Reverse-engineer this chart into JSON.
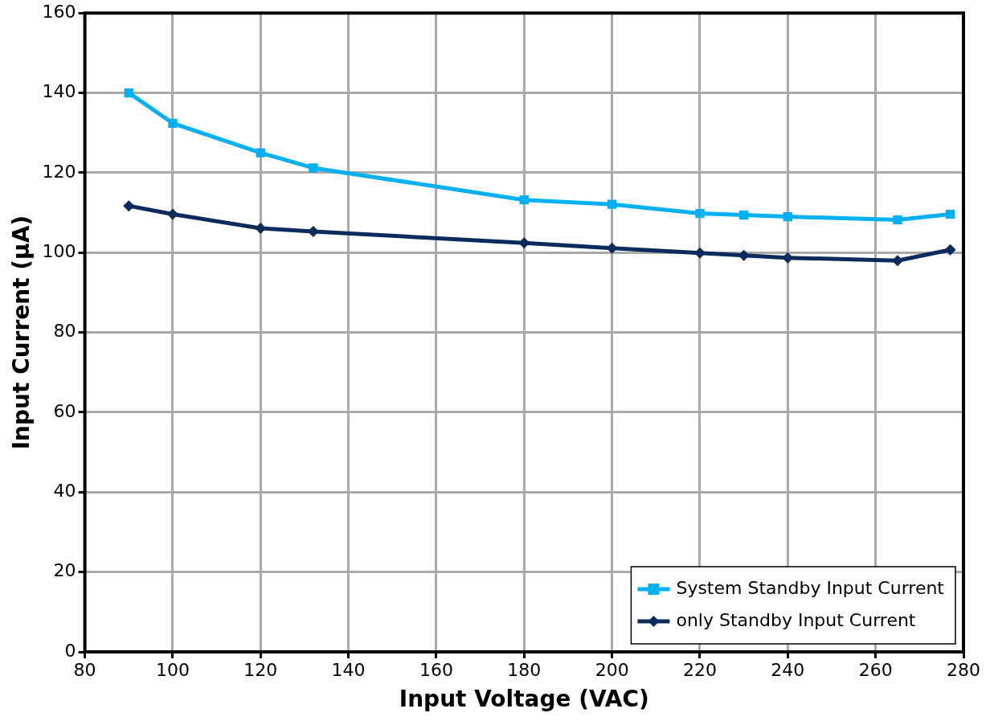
{
  "chart_data": {
    "type": "line",
    "xlabel": "Input Voltage (VAC)",
    "ylabel": "Input Current (µA)",
    "x": [
      90,
      100,
      120,
      132,
      180,
      200,
      220,
      230,
      240,
      265,
      277
    ],
    "series": [
      {
        "name": "System Standby Input Current",
        "color": "#00b0f0",
        "marker": "square",
        "values": [
          140,
          132.4,
          125,
          121.2,
          113.2,
          112.1,
          109.8,
          109.4,
          109,
          108.2,
          109.6
        ]
      },
      {
        "name": "only Standby Input Current",
        "color": "#0d2a5c",
        "marker": "diamond",
        "values": [
          111.7,
          109.6,
          106.1,
          105.3,
          102.4,
          101.1,
          99.9,
          99.3,
          98.7,
          98,
          100.7
        ]
      }
    ],
    "xlim": [
      80,
      280
    ],
    "xticks": [
      80,
      100,
      120,
      140,
      160,
      180,
      200,
      220,
      240,
      260,
      280
    ],
    "ylim": [
      0,
      160
    ],
    "yticks": [
      0,
      20,
      40,
      60,
      80,
      100,
      120,
      140,
      160
    ],
    "grid": true,
    "legend": "bottom right",
    "line_style": "solid"
  }
}
